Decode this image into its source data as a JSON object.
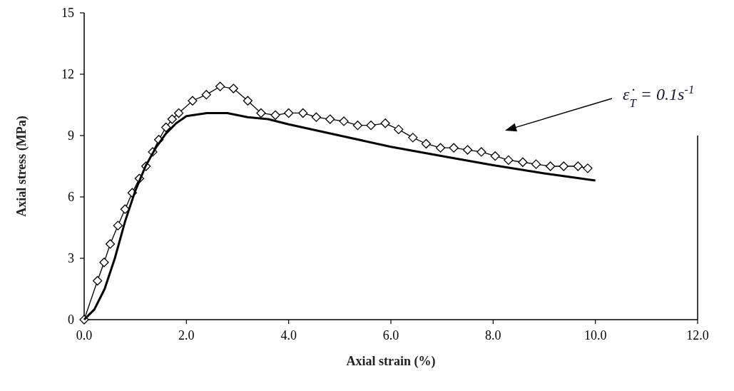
{
  "chart_data": {
    "type": "line",
    "xlabel": "Axial strain (%)",
    "ylabel": "Axial stress (MPa)",
    "xlim": [
      0,
      12
    ],
    "xticks": [
      {
        "value": 0,
        "label": "0.0"
      },
      {
        "value": 2,
        "label": "2.0"
      },
      {
        "value": 4,
        "label": "4.0"
      },
      {
        "value": 6,
        "label": "6.0"
      },
      {
        "value": 8,
        "label": "8.0"
      },
      {
        "value": 10,
        "label": "10.0"
      },
      {
        "value": 12,
        "label": "12.0"
      }
    ],
    "ylim": [
      0,
      15
    ],
    "yticks": [
      0,
      3,
      6,
      9,
      12,
      15
    ],
    "grid": false,
    "annotations": [
      "ε̇$_{T}$ = 0.1s$^{-1}$"
    ],
    "series": [
      {
        "color": "#000000",
        "marker": "diamond",
        "line_style": "solid",
        "x": [
          0,
          0.26,
          0.39,
          0.51,
          0.66,
          0.8,
          0.94,
          1.08,
          1.21,
          1.34,
          1.46,
          1.6,
          1.72,
          1.85,
          2.12,
          2.39,
          2.66,
          2.92,
          3.2,
          3.46,
          3.74,
          4.0,
          4.28,
          4.54,
          4.81,
          5.08,
          5.35,
          5.61,
          5.89,
          6.15,
          6.43,
          6.69,
          6.97,
          7.23,
          7.5,
          7.77,
          8.04,
          8.3,
          8.58,
          8.84,
          9.12,
          9.38,
          9.66,
          9.85
        ],
        "values": [
          0,
          1.9,
          2.8,
          3.7,
          4.6,
          5.4,
          6.2,
          6.9,
          7.5,
          8.2,
          8.8,
          9.4,
          9.8,
          10.1,
          10.7,
          11.0,
          11.4,
          11.3,
          10.7,
          10.1,
          10.0,
          10.1,
          10.1,
          9.9,
          9.8,
          9.7,
          9.5,
          9.5,
          9.6,
          9.3,
          8.9,
          8.6,
          8.4,
          8.4,
          8.3,
          8.2,
          8.0,
          7.8,
          7.7,
          7.6,
          7.5,
          7.5,
          7.5,
          7.4
        ]
      },
      {
        "color": "#000000",
        "marker": "none",
        "line_style": "solid",
        "x": [
          0,
          0.2,
          0.4,
          0.6,
          0.8,
          1.0,
          1.2,
          1.4,
          1.6,
          1.8,
          2.0,
          2.4,
          2.8,
          3.2,
          3.6,
          4.0,
          5.0,
          6.0,
          7.0,
          8.0,
          9.0,
          10.0
        ],
        "values": [
          0,
          0.5,
          1.5,
          3.0,
          4.8,
          6.3,
          7.5,
          8.4,
          9.1,
          9.6,
          9.95,
          10.1,
          10.1,
          9.9,
          9.8,
          9.55,
          9.0,
          8.45,
          8.0,
          7.55,
          7.15,
          6.8
        ]
      }
    ]
  }
}
